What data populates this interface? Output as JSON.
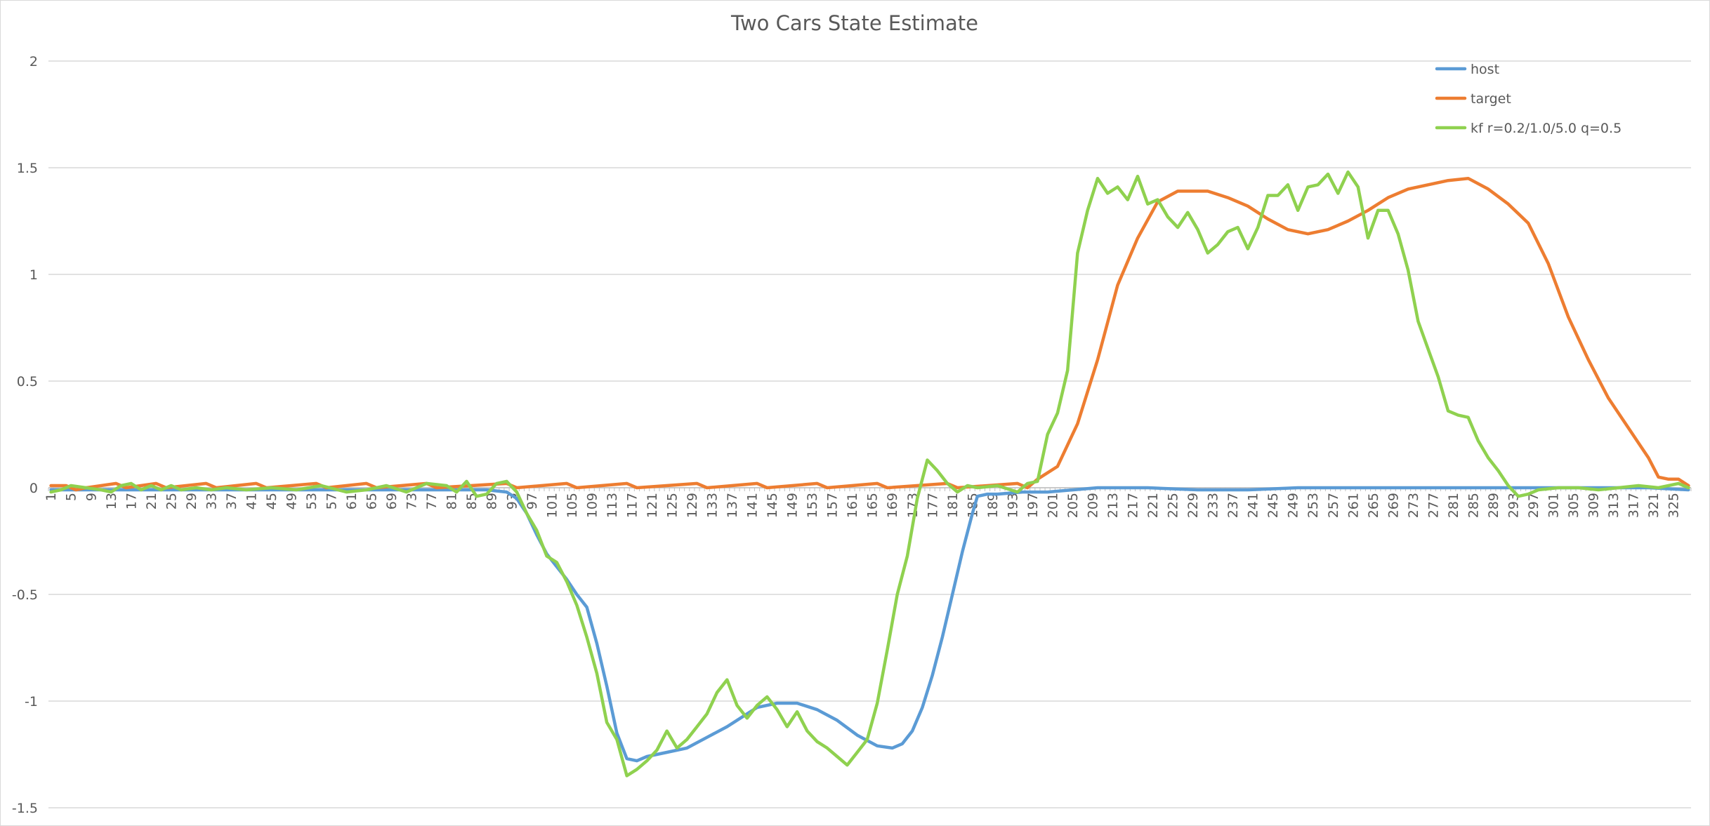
{
  "chart_data": {
    "type": "line",
    "title": "Two Cars State Estimate",
    "xlabel": "",
    "ylabel": "",
    "x_range": [
      1,
      328
    ],
    "x_tick_labels": [
      "1",
      "5",
      "9",
      "13",
      "17",
      "21",
      "25",
      "29",
      "33",
      "37",
      "41",
      "45",
      "49",
      "53",
      "57",
      "61",
      "65",
      "69",
      "73",
      "77",
      "81",
      "85",
      "89",
      "93",
      "97",
      "101",
      "105",
      "109",
      "113",
      "117",
      "121",
      "125",
      "129",
      "133",
      "137",
      "141",
      "145",
      "149",
      "153",
      "157",
      "161",
      "165",
      "169",
      "173",
      "177",
      "181",
      "185",
      "189",
      "193",
      "197",
      "201",
      "205",
      "209",
      "213",
      "217",
      "221",
      "225",
      "229",
      "233",
      "237",
      "241",
      "245",
      "249",
      "253",
      "257",
      "261",
      "265",
      "269",
      "273",
      "277",
      "281",
      "285",
      "289",
      "293",
      "297",
      "301",
      "305",
      "309",
      "313",
      "317",
      "321",
      "325"
    ],
    "ylim": [
      -1.5,
      2
    ],
    "y_ticks": [
      2,
      1.5,
      1,
      0.5,
      0,
      -0.5,
      -1,
      -1.5
    ],
    "y_tick_labels": [
      "2",
      "1.5",
      "1",
      "0.5",
      "0",
      "-0.5",
      "-1",
      "-1.5"
    ],
    "grid": true,
    "legend_position": "top-right",
    "series": [
      {
        "name": "host",
        "color": "#5b9bd5",
        "points": [
          [
            1,
            -0.01
          ],
          [
            10,
            -0.01
          ],
          [
            20,
            -0.01
          ],
          [
            30,
            -0.01
          ],
          [
            40,
            -0.01
          ],
          [
            50,
            -0.01
          ],
          [
            60,
            -0.01
          ],
          [
            70,
            -0.01
          ],
          [
            80,
            -0.01
          ],
          [
            88,
            -0.01
          ],
          [
            92,
            -0.02
          ],
          [
            94,
            -0.05
          ],
          [
            96,
            -0.12
          ],
          [
            98,
            -0.22
          ],
          [
            100,
            -0.31
          ],
          [
            102,
            -0.37
          ],
          [
            104,
            -0.43
          ],
          [
            106,
            -0.5
          ],
          [
            108,
            -0.56
          ],
          [
            110,
            -0.73
          ],
          [
            112,
            -0.93
          ],
          [
            114,
            -1.15
          ],
          [
            116,
            -1.27
          ],
          [
            118,
            -1.28
          ],
          [
            120,
            -1.26
          ],
          [
            124,
            -1.24
          ],
          [
            128,
            -1.22
          ],
          [
            132,
            -1.17
          ],
          [
            136,
            -1.12
          ],
          [
            140,
            -1.06
          ],
          [
            142,
            -1.03
          ],
          [
            146,
            -1.01
          ],
          [
            150,
            -1.01
          ],
          [
            154,
            -1.04
          ],
          [
            158,
            -1.09
          ],
          [
            162,
            -1.16
          ],
          [
            166,
            -1.21
          ],
          [
            169,
            -1.22
          ],
          [
            171,
            -1.2
          ],
          [
            173,
            -1.14
          ],
          [
            175,
            -1.03
          ],
          [
            177,
            -0.88
          ],
          [
            179,
            -0.7
          ],
          [
            181,
            -0.5
          ],
          [
            183,
            -0.3
          ],
          [
            185,
            -0.12
          ],
          [
            186,
            -0.04
          ],
          [
            188,
            -0.03
          ],
          [
            190,
            -0.03
          ],
          [
            195,
            -0.02
          ],
          [
            200,
            -0.02
          ],
          [
            210,
            0.0
          ],
          [
            220,
            0.0
          ],
          [
            230,
            -0.01
          ],
          [
            240,
            -0.01
          ],
          [
            250,
            0.0
          ],
          [
            260,
            0.0
          ],
          [
            270,
            0.0
          ],
          [
            280,
            0.0
          ],
          [
            290,
            0.0
          ],
          [
            300,
            0.0
          ],
          [
            310,
            0.0
          ],
          [
            320,
            0.0
          ],
          [
            328,
            -0.01
          ]
        ]
      },
      {
        "name": "target",
        "color": "#ed7d31",
        "points": [
          [
            1,
            0.01
          ],
          [
            4,
            0.01
          ],
          [
            6,
            -0.01
          ],
          [
            8,
            0.0
          ],
          [
            14,
            0.02
          ],
          [
            16,
            0.0
          ],
          [
            22,
            0.02
          ],
          [
            24,
            0.0
          ],
          [
            32,
            0.02
          ],
          [
            34,
            0.0
          ],
          [
            42,
            0.02
          ],
          [
            44,
            0.0
          ],
          [
            54,
            0.02
          ],
          [
            56,
            0.0
          ],
          [
            64,
            0.02
          ],
          [
            66,
            0.0
          ],
          [
            76,
            0.02
          ],
          [
            78,
            0.0
          ],
          [
            92,
            0.02
          ],
          [
            94,
            0.0
          ],
          [
            104,
            0.02
          ],
          [
            106,
            0.0
          ],
          [
            116,
            0.02
          ],
          [
            118,
            0.0
          ],
          [
            130,
            0.02
          ],
          [
            132,
            0.0
          ],
          [
            142,
            0.02
          ],
          [
            144,
            0.0
          ],
          [
            154,
            0.02
          ],
          [
            156,
            0.0
          ],
          [
            166,
            0.02
          ],
          [
            168,
            0.0
          ],
          [
            180,
            0.02
          ],
          [
            182,
            0.0
          ],
          [
            194,
            0.02
          ],
          [
            196,
            0.0
          ],
          [
            198,
            0.04
          ],
          [
            202,
            0.1
          ],
          [
            206,
            0.3
          ],
          [
            210,
            0.6
          ],
          [
            214,
            0.95
          ],
          [
            218,
            1.17
          ],
          [
            222,
            1.34
          ],
          [
            226,
            1.39
          ],
          [
            232,
            1.39
          ],
          [
            236,
            1.36
          ],
          [
            240,
            1.32
          ],
          [
            244,
            1.26
          ],
          [
            248,
            1.21
          ],
          [
            252,
            1.19
          ],
          [
            256,
            1.21
          ],
          [
            260,
            1.25
          ],
          [
            264,
            1.3
          ],
          [
            268,
            1.36
          ],
          [
            272,
            1.4
          ],
          [
            276,
            1.42
          ],
          [
            280,
            1.44
          ],
          [
            284,
            1.45
          ],
          [
            288,
            1.4
          ],
          [
            292,
            1.33
          ],
          [
            296,
            1.24
          ],
          [
            300,
            1.05
          ],
          [
            304,
            0.8
          ],
          [
            308,
            0.6
          ],
          [
            312,
            0.42
          ],
          [
            316,
            0.28
          ],
          [
            320,
            0.14
          ],
          [
            322,
            0.05
          ],
          [
            324,
            0.04
          ],
          [
            326,
            0.04
          ],
          [
            328,
            0.01
          ]
        ]
      },
      {
        "name": "kf r=0.2/1.0/5.0 q=0.5",
        "color": "#8fd14f",
        "points": [
          [
            1,
            -0.02
          ],
          [
            3,
            -0.01
          ],
          [
            5,
            0.01
          ],
          [
            8,
            0.0
          ],
          [
            11,
            -0.01
          ],
          [
            13,
            -0.02
          ],
          [
            15,
            0.01
          ],
          [
            17,
            0.02
          ],
          [
            19,
            -0.01
          ],
          [
            21,
            0.01
          ],
          [
            23,
            -0.01
          ],
          [
            25,
            0.01
          ],
          [
            27,
            -0.01
          ],
          [
            30,
            0.0
          ],
          [
            33,
            -0.01
          ],
          [
            36,
            0.0
          ],
          [
            40,
            -0.01
          ],
          [
            45,
            0.0
          ],
          [
            50,
            -0.01
          ],
          [
            55,
            0.01
          ],
          [
            60,
            -0.02
          ],
          [
            64,
            -0.01
          ],
          [
            68,
            0.01
          ],
          [
            72,
            -0.02
          ],
          [
            76,
            0.02
          ],
          [
            80,
            0.01
          ],
          [
            82,
            -0.02
          ],
          [
            84,
            0.03
          ],
          [
            86,
            -0.04
          ],
          [
            88,
            -0.03
          ],
          [
            90,
            0.02
          ],
          [
            92,
            0.03
          ],
          [
            94,
            -0.02
          ],
          [
            96,
            -0.12
          ],
          [
            98,
            -0.2
          ],
          [
            100,
            -0.32
          ],
          [
            102,
            -0.35
          ],
          [
            104,
            -0.44
          ],
          [
            106,
            -0.55
          ],
          [
            108,
            -0.7
          ],
          [
            110,
            -0.87
          ],
          [
            112,
            -1.1
          ],
          [
            114,
            -1.18
          ],
          [
            116,
            -1.35
          ],
          [
            118,
            -1.32
          ],
          [
            120,
            -1.28
          ],
          [
            122,
            -1.23
          ],
          [
            124,
            -1.14
          ],
          [
            126,
            -1.22
          ],
          [
            128,
            -1.18
          ],
          [
            130,
            -1.12
          ],
          [
            132,
            -1.06
          ],
          [
            134,
            -0.96
          ],
          [
            136,
            -0.9
          ],
          [
            138,
            -1.02
          ],
          [
            140,
            -1.08
          ],
          [
            142,
            -1.02
          ],
          [
            144,
            -0.98
          ],
          [
            146,
            -1.04
          ],
          [
            148,
            -1.12
          ],
          [
            150,
            -1.05
          ],
          [
            152,
            -1.14
          ],
          [
            154,
            -1.19
          ],
          [
            156,
            -1.22
          ],
          [
            158,
            -1.26
          ],
          [
            160,
            -1.3
          ],
          [
            162,
            -1.24
          ],
          [
            164,
            -1.18
          ],
          [
            166,
            -1.01
          ],
          [
            168,
            -0.76
          ],
          [
            170,
            -0.5
          ],
          [
            172,
            -0.32
          ],
          [
            174,
            -0.05
          ],
          [
            176,
            0.13
          ],
          [
            178,
            0.08
          ],
          [
            180,
            0.02
          ],
          [
            182,
            -0.02
          ],
          [
            184,
            0.01
          ],
          [
            186,
            0.0
          ],
          [
            190,
            0.01
          ],
          [
            194,
            -0.02
          ],
          [
            196,
            0.02
          ],
          [
            198,
            0.03
          ],
          [
            200,
            0.25
          ],
          [
            202,
            0.35
          ],
          [
            204,
            0.55
          ],
          [
            206,
            1.1
          ],
          [
            208,
            1.3
          ],
          [
            210,
            1.45
          ],
          [
            212,
            1.38
          ],
          [
            214,
            1.41
          ],
          [
            216,
            1.35
          ],
          [
            218,
            1.46
          ],
          [
            220,
            1.33
          ],
          [
            222,
            1.35
          ],
          [
            224,
            1.27
          ],
          [
            226,
            1.22
          ],
          [
            228,
            1.29
          ],
          [
            230,
            1.21
          ],
          [
            232,
            1.1
          ],
          [
            234,
            1.14
          ],
          [
            236,
            1.2
          ],
          [
            238,
            1.22
          ],
          [
            240,
            1.12
          ],
          [
            242,
            1.22
          ],
          [
            244,
            1.37
          ],
          [
            246,
            1.37
          ],
          [
            248,
            1.42
          ],
          [
            250,
            1.3
          ],
          [
            252,
            1.41
          ],
          [
            254,
            1.42
          ],
          [
            256,
            1.47
          ],
          [
            258,
            1.38
          ],
          [
            260,
            1.48
          ],
          [
            262,
            1.41
          ],
          [
            264,
            1.17
          ],
          [
            266,
            1.3
          ],
          [
            268,
            1.3
          ],
          [
            270,
            1.19
          ],
          [
            272,
            1.02
          ],
          [
            274,
            0.78
          ],
          [
            276,
            0.65
          ],
          [
            278,
            0.52
          ],
          [
            280,
            0.36
          ],
          [
            282,
            0.34
          ],
          [
            284,
            0.33
          ],
          [
            286,
            0.22
          ],
          [
            288,
            0.14
          ],
          [
            290,
            0.08
          ],
          [
            292,
            0.01
          ],
          [
            294,
            -0.04
          ],
          [
            296,
            -0.03
          ],
          [
            298,
            -0.01
          ],
          [
            302,
            0.0
          ],
          [
            306,
            0.0
          ],
          [
            310,
            -0.01
          ],
          [
            314,
            0.0
          ],
          [
            318,
            0.01
          ],
          [
            322,
            0.0
          ],
          [
            326,
            0.02
          ],
          [
            328,
            0.0
          ]
        ]
      }
    ]
  }
}
